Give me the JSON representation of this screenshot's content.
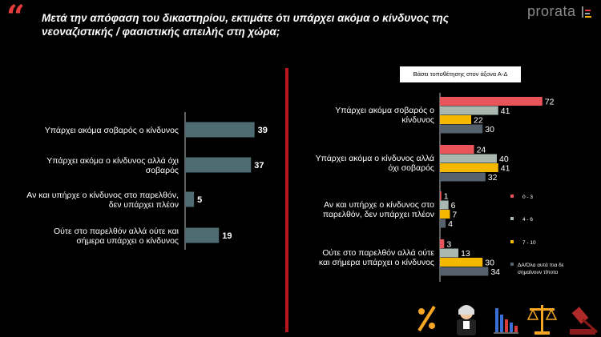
{
  "header": {
    "quote_mark": "“",
    "title": "Μετά την απόφαση του δικαστηρίου, εκτιμάτε ότι υπάρχει ακόμα ο κίνδυνος της νεοναζιστικής / φασιστικής απειλής στη χώρα;",
    "brand": "prorata"
  },
  "chart_data": [
    {
      "type": "bar",
      "orientation": "horizontal",
      "categories": [
        [
          "Υπάρχει ακόμα σοβαρός ο κίνδυνος"
        ],
        [
          "Υπάρχει ακόμα ο κίνδυνος αλλά όχι",
          "σοβαρός"
        ],
        [
          "Αν και υπήρχε ο κίνδυνος στο παρελθόν,",
          "δεν υπάρχει πλέον"
        ],
        [
          "Ούτε στο παρελθόν αλλά ούτε και",
          "σήμερα υπάρχει ο κίνδυνος"
        ]
      ],
      "values": [
        39,
        37,
        5,
        19
      ],
      "xlim": [
        0,
        45
      ],
      "color": "#4e6b72"
    },
    {
      "type": "bar",
      "orientation": "horizontal",
      "legend_title": "Βάσει τοποθέτησης στον άξονα Α-Δ",
      "categories": [
        [
          "Υπάρχει ακόμα σοβαρός ο",
          "κίνδυνος"
        ],
        [
          "Υπάρχει ακόμα ο κίνδυνος αλλά",
          "όχι σοβαρός"
        ],
        [
          "Αν και υπήρχε ο κίνδυνος στο",
          "παρελθόν, δεν υπάρχει πλέον"
        ],
        [
          "Ούτε στο παρελθόν αλλά ούτε",
          "και σήμερα υπάρχει ο κίνδυνος"
        ]
      ],
      "series": [
        {
          "name": "0 - 3",
          "color": "#e8545a",
          "values": [
            72,
            24,
            1,
            3
          ]
        },
        {
          "name": "4 - 6",
          "color": "#a9b9b2",
          "values": [
            41,
            40,
            6,
            13
          ]
        },
        {
          "name": "7 - 10",
          "color": "#f5b800",
          "values": [
            22,
            41,
            7,
            30
          ]
        },
        {
          "name": "ΔΑ/Όλα αυτά πια δε σημαίνουν τίποτα",
          "color": "#55626e",
          "values": [
            30,
            32,
            4,
            34
          ]
        }
      ],
      "legend_labels": [
        [
          "0 - 3"
        ],
        [
          "4 - 6"
        ],
        [
          "7 - 10"
        ],
        [
          "ΔΑ/Όλα αυτά πια δε",
          "σημαίνουν τίποτα"
        ]
      ],
      "xlim": [
        0,
        80
      ],
      "legend_position": "right"
    }
  ],
  "footer_icons": [
    "percent-icon",
    "judge-icon",
    "bar-chart-icon",
    "scales-icon",
    "gavel-icon"
  ]
}
